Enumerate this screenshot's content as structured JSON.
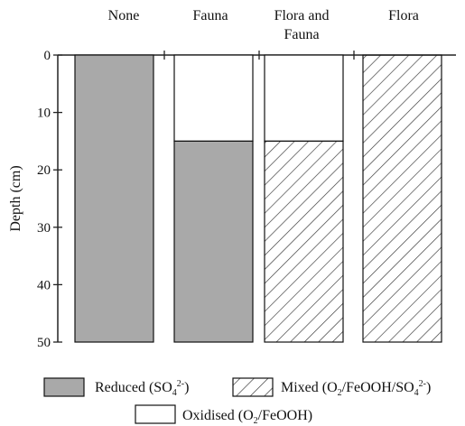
{
  "chart_data": {
    "type": "bar",
    "orientation": "vertical-stacked-depth",
    "categories": [
      "None",
      "Fauna",
      "Flora and Fauna",
      "Flora"
    ],
    "category_label_lines": [
      [
        "None"
      ],
      [
        "Fauna"
      ],
      [
        "Flora and",
        "Fauna"
      ],
      [
        "Flora"
      ]
    ],
    "ylabel": "Depth (cm)",
    "ylim": [
      0,
      50
    ],
    "y_inverted": true,
    "yticks": [
      0,
      10,
      20,
      30,
      40,
      50
    ],
    "grid": false,
    "legend_placement": "bottom",
    "layers": [
      [
        {
          "zone": "reduced",
          "from": 0,
          "to": 50
        }
      ],
      [
        {
          "zone": "oxidised",
          "from": 0,
          "to": 15
        },
        {
          "zone": "reduced",
          "from": 15,
          "to": 50
        }
      ],
      [
        {
          "zone": "oxidised",
          "from": 0,
          "to": 15
        },
        {
          "zone": "mixed",
          "from": 15,
          "to": 50
        }
      ],
      [
        {
          "zone": "mixed",
          "from": 0,
          "to": 50
        }
      ]
    ],
    "legend": [
      {
        "zone": "reduced",
        "text": "Reduced (SO",
        "sub": "4",
        "sup": "2-",
        "tail": ")"
      },
      {
        "zone": "mixed",
        "text": "Mixed (O",
        "sub": "2",
        "mid": "/FeOOH/SO",
        "sub2": "4",
        "sup": "2-",
        "tail": ")"
      },
      {
        "zone": "oxidised",
        "text": "Oxidised (O",
        "sub": "2",
        "tail": "/FeOOH)"
      }
    ],
    "colors": {
      "reduced": "#a9a9a9",
      "oxidised": "#ffffff",
      "mixed_hatch": "#333333",
      "axis": "#222222"
    }
  }
}
